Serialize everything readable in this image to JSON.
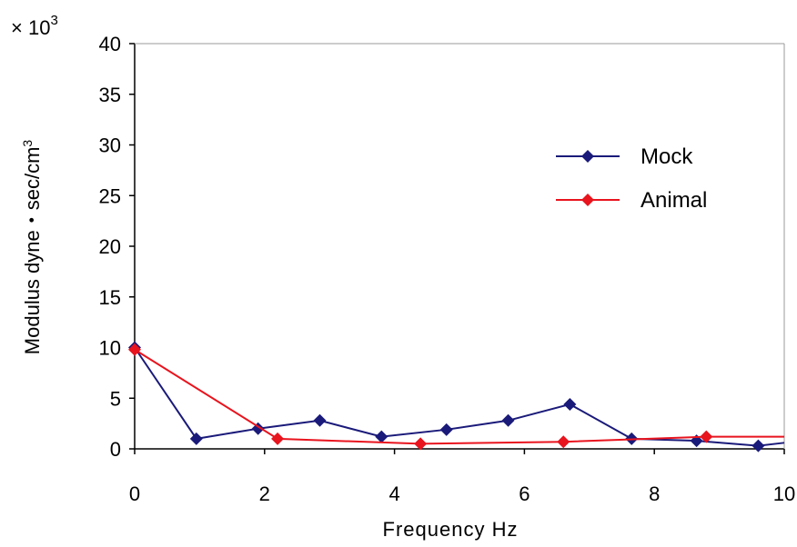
{
  "chart_data": {
    "type": "line",
    "multiplier": "× 10",
    "multiplier_exp": "3",
    "xlabel": "Frequency  Hz",
    "ylabel": "Modulus dyne・sec/cm",
    "ylabel_sup": "3",
    "xlim": [
      0,
      10
    ],
    "ylim": [
      0,
      40
    ],
    "xticks": [
      "0",
      "2",
      "4",
      "6",
      "8",
      "10"
    ],
    "yticks": [
      "0",
      "5",
      "10",
      "15",
      "20",
      "25",
      "30",
      "35",
      "40"
    ],
    "legend_position": "right",
    "series": [
      {
        "name": "Mock",
        "color": "#1a1a7a",
        "marker": "diamond",
        "x": [
          0,
          0.95,
          1.9,
          2.85,
          3.8,
          4.8,
          5.75,
          6.7,
          7.65,
          8.65,
          9.6,
          10
        ],
        "y": [
          10,
          1,
          2,
          2.8,
          1.2,
          1.9,
          2.8,
          4.4,
          1,
          0.8,
          0.3,
          0.6
        ]
      },
      {
        "name": "Animal",
        "color": "#e8141e",
        "marker": "diamond",
        "x": [
          0,
          2.2,
          4.4,
          6.6,
          8.8,
          10
        ],
        "y": [
          9.8,
          1,
          0.5,
          0.7,
          1.2,
          1.2
        ]
      }
    ]
  }
}
